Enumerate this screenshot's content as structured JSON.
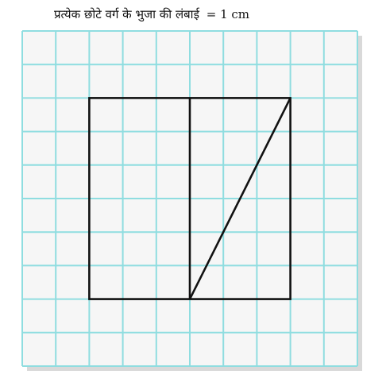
{
  "caption": {
    "text": "प्रत्येक छोटे वर्ग के भुजा की लंबाई",
    "equals": "=",
    "value": "1 cm"
  },
  "grid": {
    "columns": 10,
    "rows": 10,
    "square_side": "1 cm",
    "line_color": "#8fdde0",
    "background_color": "#f6f6f6",
    "shadow_color": "#d9d9d9"
  },
  "figure": {
    "stroke_color": "#111111",
    "outer_square": {
      "x1": 2,
      "y1": 2,
      "x2": 8,
      "y2": 8
    },
    "vertical_segment": {
      "x": 5,
      "y1": 2,
      "y2": 8
    },
    "diagonal_segment": {
      "from": [
        5,
        8
      ],
      "to": [
        8,
        2
      ]
    }
  }
}
